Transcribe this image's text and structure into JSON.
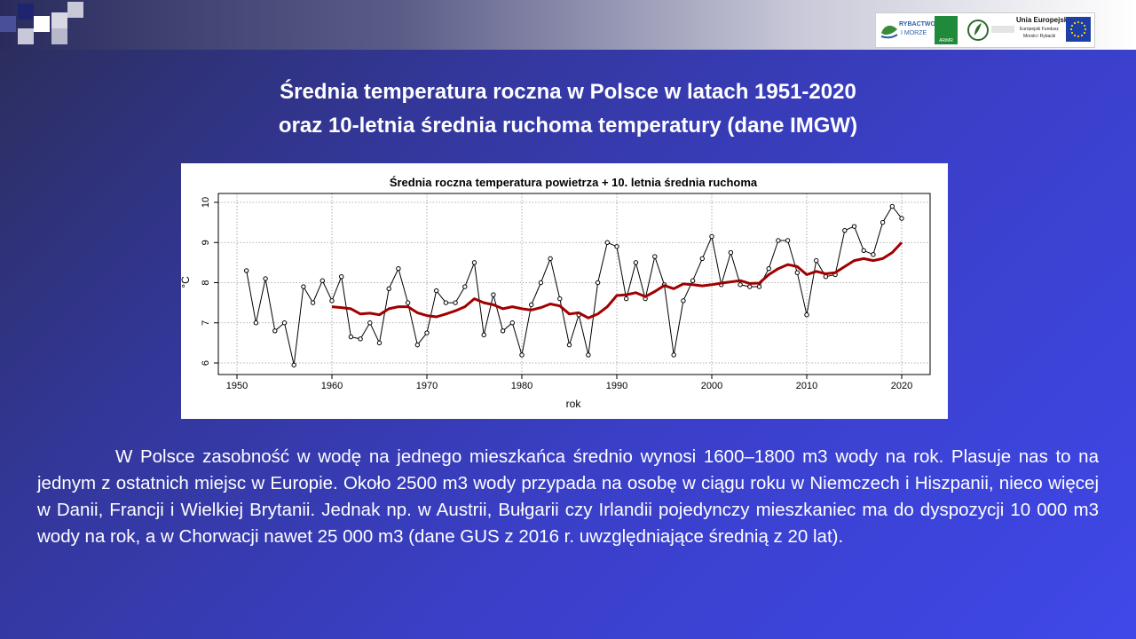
{
  "slide": {
    "title_line1": "Średnia temperatura roczna w Polsce w latach 1951-2020",
    "title_line2": "oraz 10-letnia średnia ruchoma temperatury (dane IMGW)",
    "paragraph": "W Polsce zasobność w wodę na jednego mieszkańca średnio wynosi 1600–1800 m3 wody na rok. Plasuje nas to na jednym z ostatnich miejsc w Europie. Około 2500 m3 wody przypada na osobę w ciągu roku w Niemczech i Hiszpanii, nieco więcej w Danii, Francji i Wielkiej Brytanii. Jednak np. w Austrii, Bułgarii czy Irlandii pojedynczy mieszkaniec ma do dyspozycji 10 000 m3 wody na rok, a w Chorwacji nawet 25 000 m3 (dane GUS z 2016 r. uwzględniające średnią z 20 lat)."
  },
  "logos": {
    "rybactwo_line1": "RYBACTWO",
    "rybactwo_line2": "I MORZE",
    "arimr": "ARiMR",
    "eu_title": "Unia Europejska",
    "eu_line1": "Europejski Fundusz",
    "eu_line2": "Morski i Rybacki"
  },
  "colors": {
    "background": "#3a3fc7",
    "annual_series": "#000000",
    "moving_average": "#a00000"
  },
  "chart_data": {
    "type": "line",
    "title": "Średnia roczna temperatura powietrza + 10. letnia średnia ruchoma",
    "xlabel": "rok",
    "ylabel": "°C",
    "xlim": [
      1950,
      2020
    ],
    "ylim": [
      6,
      10
    ],
    "xticks": [
      1950,
      1960,
      1970,
      1980,
      1990,
      2000,
      2010,
      2020
    ],
    "yticks": [
      6,
      7,
      8,
      9,
      10
    ],
    "grid": true,
    "legend": "none",
    "series": [
      {
        "style": "line-with-points",
        "color": "#000000",
        "x": [
          1951,
          1952,
          1953,
          1954,
          1955,
          1956,
          1957,
          1958,
          1959,
          1960,
          1961,
          1962,
          1963,
          1964,
          1965,
          1966,
          1967,
          1968,
          1969,
          1970,
          1971,
          1972,
          1973,
          1974,
          1975,
          1976,
          1977,
          1978,
          1979,
          1980,
          1981,
          1982,
          1983,
          1984,
          1985,
          1986,
          1987,
          1988,
          1989,
          1990,
          1991,
          1992,
          1993,
          1994,
          1995,
          1996,
          1997,
          1998,
          1999,
          2000,
          2001,
          2002,
          2003,
          2004,
          2005,
          2006,
          2007,
          2008,
          2009,
          2010,
          2011,
          2012,
          2013,
          2014,
          2015,
          2016,
          2017,
          2018,
          2019,
          2020
        ],
        "y": [
          8.3,
          7.0,
          8.1,
          6.8,
          7.0,
          5.95,
          7.9,
          7.5,
          8.05,
          7.55,
          8.15,
          6.65,
          6.6,
          7.0,
          6.5,
          7.85,
          8.35,
          7.5,
          6.45,
          6.75,
          7.8,
          7.5,
          7.5,
          7.9,
          8.5,
          6.7,
          7.7,
          6.8,
          7.0,
          6.2,
          7.45,
          8.0,
          8.6,
          7.6,
          6.45,
          7.2,
          6.2,
          8.0,
          9.0,
          8.9,
          7.6,
          8.5,
          7.6,
          8.65,
          7.95,
          6.2,
          7.55,
          8.05,
          8.6,
          9.15,
          7.95,
          8.75,
          7.95,
          7.9,
          7.9,
          8.35,
          9.05,
          9.05,
          8.25,
          7.2,
          8.55,
          8.15,
          8.2,
          9.3,
          9.4,
          8.8,
          8.7,
          9.5,
          9.9,
          9.6
        ]
      },
      {
        "style": "line",
        "color": "#a00000",
        "x": [
          1960,
          1961,
          1962,
          1963,
          1964,
          1965,
          1966,
          1967,
          1968,
          1969,
          1970,
          1971,
          1972,
          1973,
          1974,
          1975,
          1976,
          1977,
          1978,
          1979,
          1980,
          1981,
          1982,
          1983,
          1984,
          1985,
          1986,
          1987,
          1988,
          1989,
          1990,
          1991,
          1992,
          1993,
          1994,
          1995,
          1996,
          1997,
          1998,
          1999,
          2000,
          2001,
          2002,
          2003,
          2004,
          2005,
          2006,
          2007,
          2008,
          2009,
          2010,
          2011,
          2012,
          2013,
          2014,
          2015,
          2016,
          2017,
          2018,
          2019,
          2020
        ],
        "y": [
          7.4,
          7.38,
          7.35,
          7.22,
          7.24,
          7.2,
          7.35,
          7.4,
          7.4,
          7.25,
          7.18,
          7.15,
          7.22,
          7.3,
          7.4,
          7.6,
          7.5,
          7.45,
          7.35,
          7.4,
          7.35,
          7.32,
          7.38,
          7.47,
          7.42,
          7.22,
          7.25,
          7.12,
          7.22,
          7.4,
          7.68,
          7.7,
          7.75,
          7.65,
          7.78,
          7.93,
          7.85,
          7.97,
          7.95,
          7.92,
          7.95,
          7.99,
          8.02,
          8.05,
          7.98,
          7.99,
          8.2,
          8.35,
          8.45,
          8.4,
          8.2,
          8.28,
          8.22,
          8.25,
          8.4,
          8.55,
          8.6,
          8.55,
          8.6,
          8.75,
          9.0
        ]
      }
    ]
  }
}
